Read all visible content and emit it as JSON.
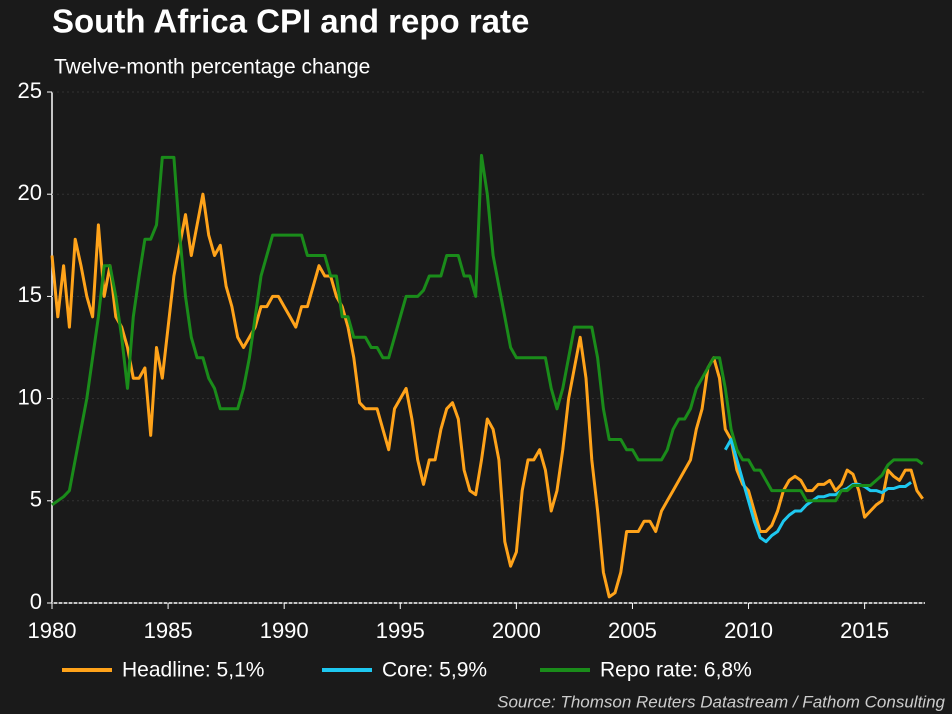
{
  "chart_data": {
    "type": "line",
    "title": "South Africa CPI and repo rate",
    "subtitle": "Twelve-month percentage change",
    "source": "Source: Thomson Reuters Datastream / Fathom Consulting",
    "x": [
      1980,
      1980.25,
      1980.5,
      1980.75,
      1981,
      1981.25,
      1981.5,
      1981.75,
      1982,
      1982.25,
      1982.5,
      1982.75,
      1983,
      1983.25,
      1983.5,
      1983.75,
      1984,
      1984.25,
      1984.5,
      1984.75,
      1985,
      1985.25,
      1985.5,
      1985.75,
      1986,
      1986.25,
      1986.5,
      1986.75,
      1987,
      1987.25,
      1987.5,
      1987.75,
      1988,
      1988.25,
      1988.5,
      1988.75,
      1989,
      1989.25,
      1989.5,
      1989.75,
      1990,
      1990.25,
      1990.5,
      1990.75,
      1991,
      1991.25,
      1991.5,
      1991.75,
      1992,
      1992.25,
      1992.5,
      1992.75,
      1993,
      1993.25,
      1993.5,
      1993.75,
      1994,
      1994.25,
      1994.5,
      1994.75,
      1995,
      1995.25,
      1995.5,
      1995.75,
      1996,
      1996.25,
      1996.5,
      1996.75,
      1997,
      1997.25,
      1997.5,
      1997.75,
      1998,
      1998.25,
      1998.5,
      1998.75,
      1999,
      1999.25,
      1999.5,
      1999.75,
      2000,
      2000.25,
      2000.5,
      2000.75,
      2001,
      2001.25,
      2001.5,
      2001.75,
      2002,
      2002.25,
      2002.5,
      2002.75,
      2003,
      2003.25,
      2003.5,
      2003.75,
      2004,
      2004.25,
      2004.5,
      2004.75,
      2005,
      2005.25,
      2005.5,
      2005.75,
      2006,
      2006.25,
      2006.5,
      2006.75,
      2007,
      2007.25,
      2007.5,
      2007.75,
      2008,
      2008.25,
      2008.5,
      2008.75,
      2009,
      2009.25,
      2009.5,
      2009.75,
      2010,
      2010.25,
      2010.5,
      2010.75,
      2011,
      2011.25,
      2011.5,
      2011.75,
      2012,
      2012.25,
      2012.5,
      2012.75,
      2013,
      2013.25,
      2013.5,
      2013.75,
      2014,
      2014.25,
      2014.5,
      2014.75,
      2015,
      2015.25,
      2015.5,
      2015.75,
      2016,
      2016.25,
      2016.5,
      2016.75,
      2017,
      2017.25,
      2017.5
    ],
    "series": [
      {
        "name": "Headline: 5,1%",
        "color": "#ffa31a",
        "values": [
          17,
          14,
          16.5,
          13.5,
          17.8,
          16.5,
          15,
          14,
          18.5,
          15,
          16.5,
          14,
          13.5,
          12.5,
          11,
          11,
          11.5,
          8.2,
          12.5,
          11,
          13.5,
          16,
          17.5,
          19,
          17,
          18.5,
          20,
          18,
          17,
          17.5,
          15.5,
          14.5,
          13,
          12.5,
          13,
          13.5,
          14.5,
          14.5,
          15,
          15,
          14.5,
          14,
          13.5,
          14.5,
          14.5,
          15.5,
          16.5,
          16,
          16,
          15,
          14.5,
          13.5,
          12,
          9.8,
          9.5,
          9.5,
          9.5,
          8.5,
          7.5,
          9.5,
          10,
          10.5,
          9,
          7,
          5.8,
          7,
          7,
          8.5,
          9.5,
          9.8,
          9,
          6.5,
          5.5,
          5.3,
          7,
          9,
          8.5,
          7,
          3,
          1.8,
          2.5,
          5.5,
          7,
          7,
          7.5,
          6.5,
          4.5,
          5.5,
          7.5,
          10,
          11.5,
          13,
          11,
          7,
          4.5,
          1.5,
          0.3,
          0.5,
          1.5,
          3.5,
          3.5,
          3.5,
          4,
          4,
          3.5,
          4.5,
          5,
          5.5,
          6,
          6.5,
          7,
          8.5,
          9.5,
          11.5,
          12,
          11,
          8.5,
          8,
          6.5,
          5.8,
          5.5,
          4.5,
          3.5,
          3.5,
          3.8,
          4.5,
          5.5,
          6,
          6.2,
          6,
          5.5,
          5.5,
          5.8,
          5.8,
          6,
          5.5,
          5.8,
          6.5,
          6.3,
          5.5,
          4.2,
          4.5,
          4.8,
          5,
          6.5,
          6.2,
          6,
          6.5,
          6.5,
          5.5,
          5.1
        ]
      },
      {
        "name": "Core: 5,9%",
        "color": "#1ec8f0",
        "values": [
          null,
          null,
          null,
          null,
          null,
          null,
          null,
          null,
          null,
          null,
          null,
          null,
          null,
          null,
          null,
          null,
          null,
          null,
          null,
          null,
          null,
          null,
          null,
          null,
          null,
          null,
          null,
          null,
          null,
          null,
          null,
          null,
          null,
          null,
          null,
          null,
          null,
          null,
          null,
          null,
          null,
          null,
          null,
          null,
          null,
          null,
          null,
          null,
          null,
          null,
          null,
          null,
          null,
          null,
          null,
          null,
          null,
          null,
          null,
          null,
          null,
          null,
          null,
          null,
          null,
          null,
          null,
          null,
          null,
          null,
          null,
          null,
          null,
          null,
          null,
          null,
          null,
          null,
          null,
          null,
          null,
          null,
          null,
          null,
          null,
          null,
          null,
          null,
          null,
          null,
          null,
          null,
          null,
          null,
          null,
          null,
          null,
          null,
          null,
          null,
          null,
          null,
          null,
          null,
          null,
          null,
          null,
          null,
          null,
          null,
          null,
          null,
          null,
          null,
          null,
          null,
          7.5,
          8,
          7,
          6,
          5,
          4,
          3.2,
          3,
          3.3,
          3.5,
          4,
          4.3,
          4.5,
          4.5,
          4.8,
          5,
          5.2,
          5.2,
          5.3,
          5.3,
          5.5,
          5.6,
          5.8,
          5.8,
          5.7,
          5.5,
          5.5,
          5.4,
          5.6,
          5.6,
          5.7,
          5.7,
          5.9,
          null,
          null
        ]
      },
      {
        "name": "Repo rate: 6,8%",
        "color": "#1a8c1a",
        "values": [
          4.8,
          5,
          5.2,
          5.5,
          7,
          8.5,
          10,
          12,
          14,
          16.5,
          16.5,
          15,
          13,
          10.5,
          14,
          16,
          17.8,
          17.8,
          18.5,
          21.8,
          21.8,
          21.8,
          18,
          15,
          13,
          12,
          12,
          11,
          10.5,
          9.5,
          9.5,
          9.5,
          9.5,
          10.5,
          12,
          14,
          16,
          17,
          18,
          18,
          18,
          18,
          18,
          18,
          17,
          17,
          17,
          17,
          16,
          16,
          14,
          14,
          13,
          13,
          13,
          12.5,
          12.5,
          12,
          12,
          13,
          14,
          15,
          15,
          15,
          15.3,
          16,
          16,
          16,
          17,
          17,
          17,
          16,
          16,
          15,
          21.9,
          20,
          17,
          15.5,
          14,
          12.5,
          12,
          12,
          12,
          12,
          12,
          12,
          10.5,
          9.5,
          10.5,
          12,
          13.5,
          13.5,
          13.5,
          13.5,
          12,
          9.5,
          8,
          8,
          8,
          7.5,
          7.5,
          7,
          7,
          7,
          7,
          7,
          7.5,
          8.5,
          9,
          9,
          9.5,
          10.5,
          11,
          11.5,
          12,
          12,
          10.5,
          8.5,
          7.5,
          7,
          7,
          6.5,
          6.5,
          6,
          5.5,
          5.5,
          5.5,
          5.5,
          5.5,
          5.5,
          5,
          5,
          5,
          5,
          5,
          5,
          5.5,
          5.5,
          5.75,
          5.75,
          5.75,
          5.75,
          6,
          6.25,
          6.75,
          7,
          7,
          7,
          7,
          7,
          6.8
        ]
      }
    ],
    "xlim": [
      1980,
      2017.6
    ],
    "xticks": [
      1980,
      1985,
      1990,
      1995,
      2000,
      2005,
      2010,
      2015
    ],
    "ylim": [
      0,
      25
    ],
    "yticks": [
      0,
      5,
      10,
      15,
      20,
      25
    ],
    "grid": true
  }
}
